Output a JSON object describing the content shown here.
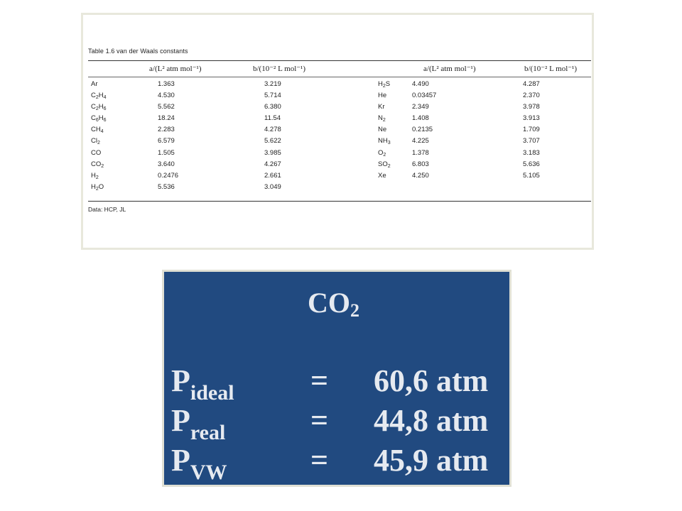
{
  "table": {
    "caption_num": "Table 1.6",
    "caption_text": "van der Waals constants",
    "headers": {
      "a": "a/(L² atm mol⁻¹)",
      "b": "b/(10⁻² L mol⁻¹)"
    },
    "left_rows": [
      {
        "base": "Ar",
        "sub": "",
        "rest": "",
        "a": "1.363",
        "b": "3.219"
      },
      {
        "base": "C",
        "sub": "2",
        "rest": "H",
        "sub2": "4",
        "a": "4.530",
        "b": "5.714"
      },
      {
        "base": "C",
        "sub": "2",
        "rest": "H",
        "sub2": "6",
        "a": "5.562",
        "b": "6.380"
      },
      {
        "base": "C",
        "sub": "6",
        "rest": "H",
        "sub2": "6",
        "a": "18.24",
        "b": "11.54"
      },
      {
        "base": "CH",
        "sub": "4",
        "rest": "",
        "a": "2.283",
        "b": "4.278"
      },
      {
        "base": "Cl",
        "sub": "2",
        "rest": "",
        "a": "6.579",
        "b": "5.622"
      },
      {
        "base": "CO",
        "sub": "",
        "rest": "",
        "a": "1.505",
        "b": "3.985"
      },
      {
        "base": "CO",
        "sub": "2",
        "rest": "",
        "a": "3.640",
        "b": "4.267"
      },
      {
        "base": "H",
        "sub": "2",
        "rest": "",
        "a": "0.2476",
        "b": "2.661"
      },
      {
        "base": "H",
        "sub": "2",
        "rest": "O",
        "a": "5.536",
        "b": "3.049"
      }
    ],
    "right_rows": [
      {
        "base": "H",
        "sub": "2",
        "rest": "S",
        "a": "4.490",
        "b": "4.287"
      },
      {
        "base": "He",
        "sub": "",
        "rest": "",
        "a": "0.03457",
        "b": "2.370"
      },
      {
        "base": "Kr",
        "sub": "",
        "rest": "",
        "a": "2.349",
        "b": "3.978"
      },
      {
        "base": "N",
        "sub": "2",
        "rest": "",
        "a": "1.408",
        "b": "3.913"
      },
      {
        "base": "Ne",
        "sub": "",
        "rest": "",
        "a": "0.2135",
        "b": "1.709"
      },
      {
        "base": "NH",
        "sub": "3",
        "rest": "",
        "a": "4.225",
        "b": "3.707"
      },
      {
        "base": "O",
        "sub": "2",
        "rest": "",
        "a": "1.378",
        "b": "3.183"
      },
      {
        "base": "SO",
        "sub": "2",
        "rest": "",
        "a": "6.803",
        "b": "5.636"
      },
      {
        "base": "Xe",
        "sub": "",
        "rest": "",
        "a": "4.250",
        "b": "5.105"
      }
    ],
    "data_note": "Data: HCP, JL"
  },
  "slide": {
    "title_base": "CO",
    "title_sub": "2",
    "equations": [
      {
        "sym": "P",
        "sub": "ideal",
        "equals": "=",
        "value": "60,6 atm"
      },
      {
        "sym": "P",
        "sub": "real",
        "equals": "=",
        "value": "44,8 atm"
      },
      {
        "sym": "P",
        "sub": "VW",
        "equals": "=",
        "value": "45,9 atm"
      }
    ]
  }
}
